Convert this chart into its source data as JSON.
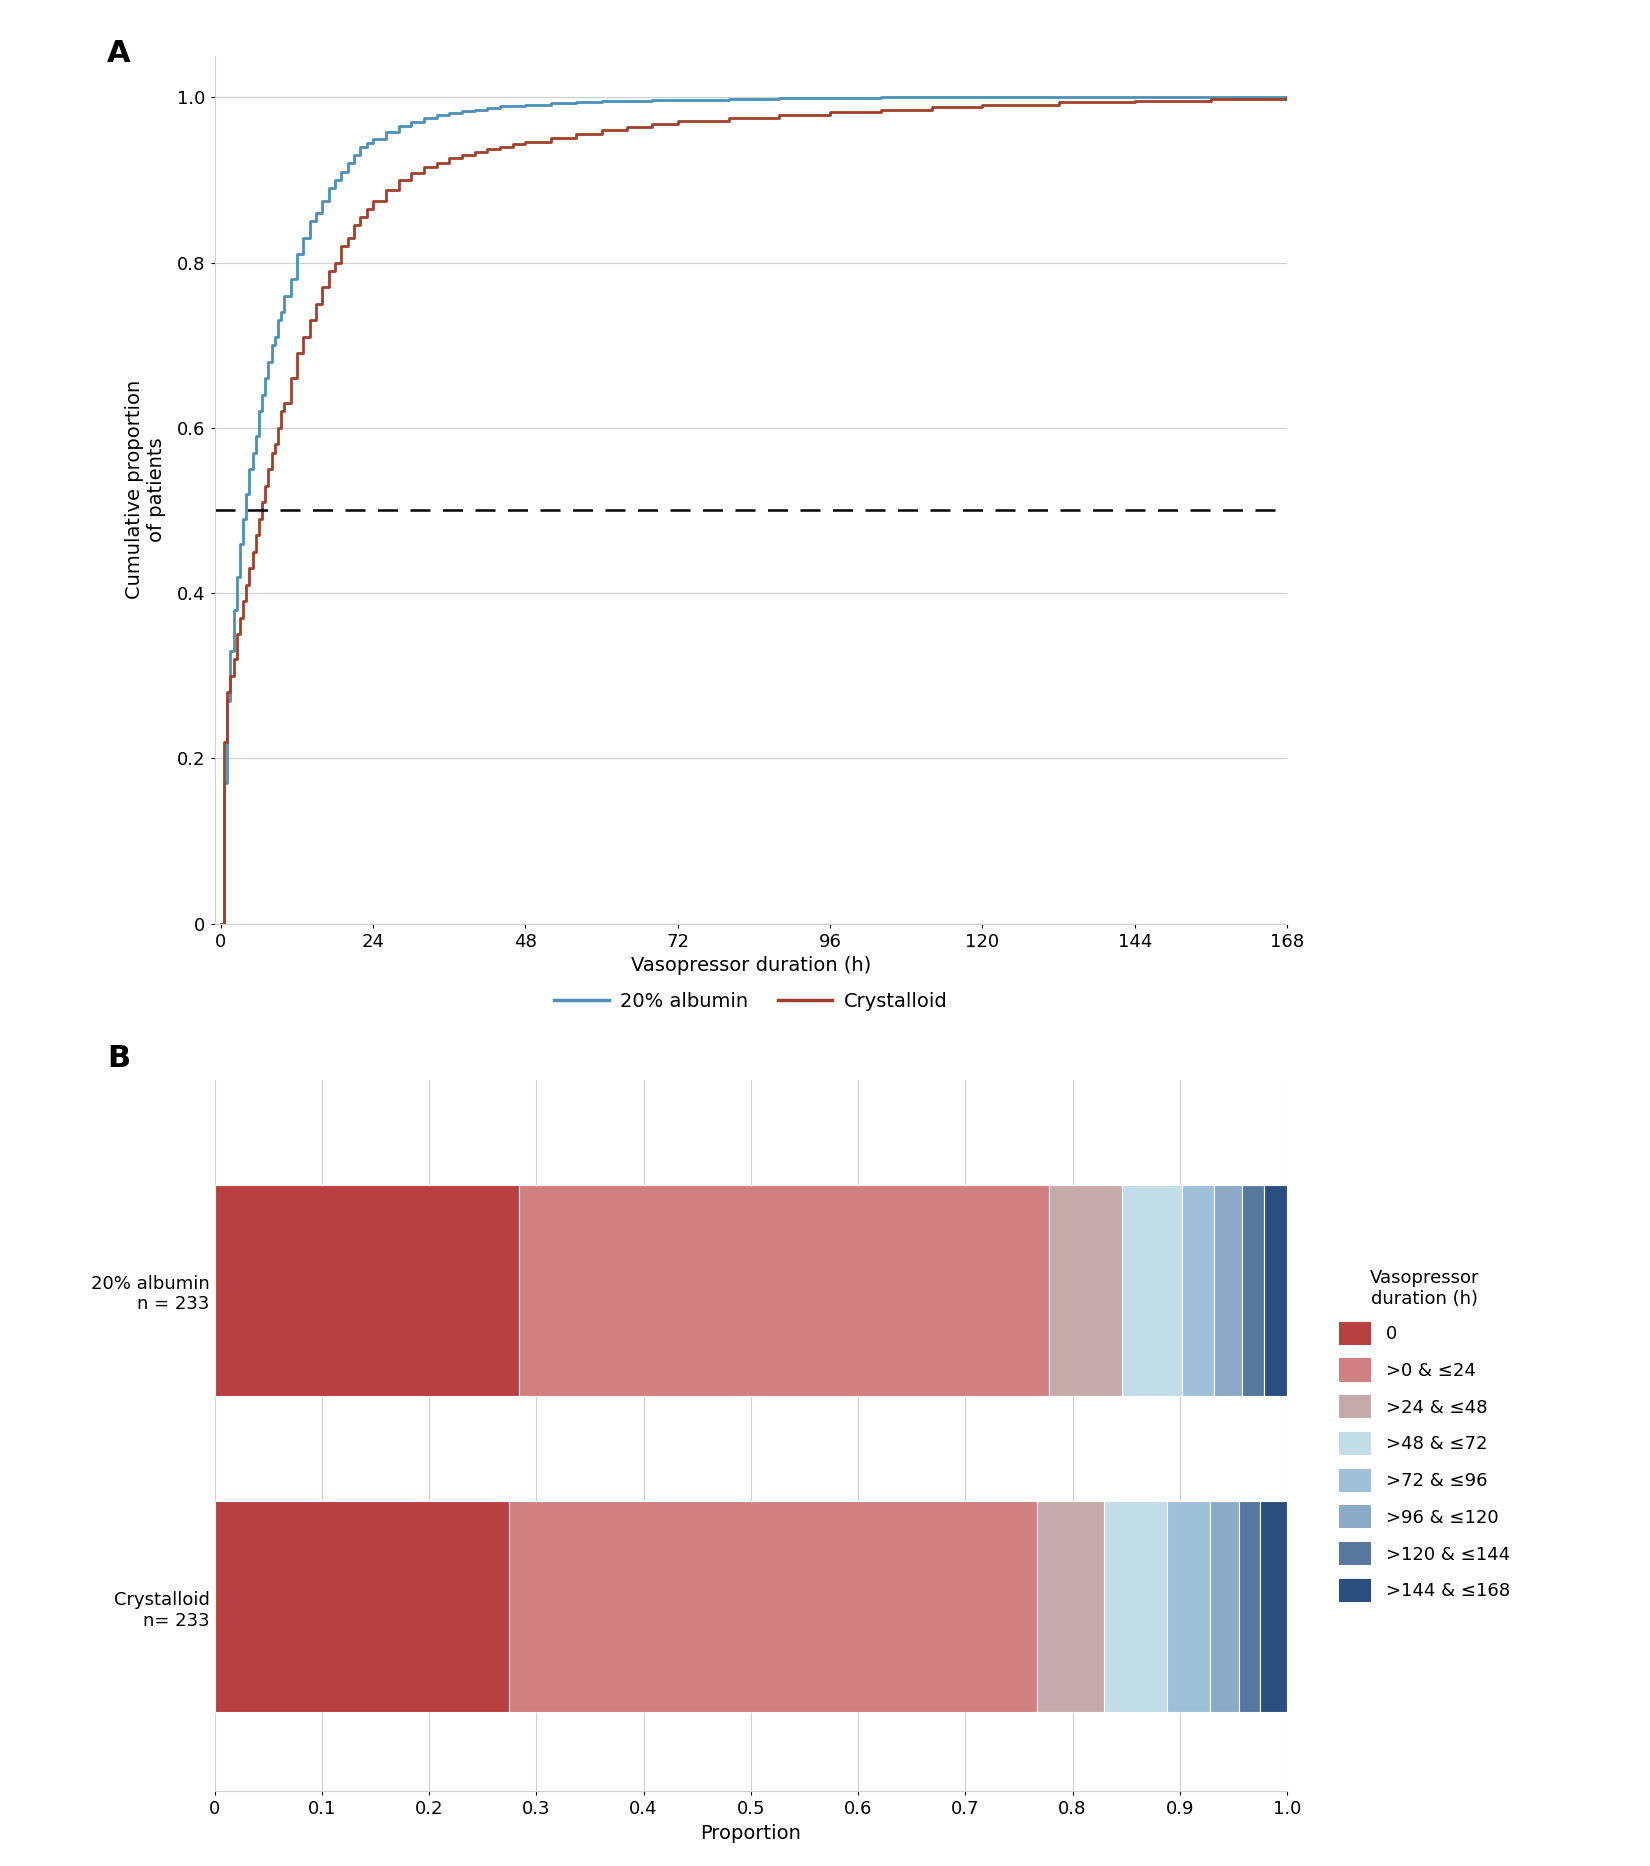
{
  "panel_a": {
    "xlabel": "Vasopressor duration (h)",
    "ylabel": "Cumulative proportion\nof patients",
    "xlim": [
      -1,
      168
    ],
    "ylim": [
      0,
      1.05
    ],
    "xticks": [
      0,
      24,
      48,
      72,
      96,
      120,
      144,
      168
    ],
    "yticks": [
      0,
      0.2,
      0.4,
      0.6,
      0.8,
      1.0
    ],
    "dashed_line_y": 0.5,
    "albumin_color": "#4a90b8",
    "crystalloid_color": "#a0402a",
    "albumin_x": [
      0,
      0.5,
      1,
      1.5,
      2,
      2.5,
      3,
      3.5,
      4,
      4.5,
      5,
      5.5,
      6,
      6.5,
      7,
      7.5,
      8,
      8.5,
      9,
      9.5,
      10,
      11,
      12,
      13,
      14,
      15,
      16,
      17,
      18,
      19,
      20,
      21,
      22,
      23,
      24,
      26,
      28,
      30,
      32,
      34,
      36,
      38,
      40,
      42,
      44,
      46,
      48,
      52,
      56,
      60,
      64,
      68,
      72,
      80,
      88,
      96,
      104,
      112,
      120,
      132,
      144,
      156,
      168
    ],
    "albumin_y": [
      0,
      0.17,
      0.27,
      0.33,
      0.38,
      0.42,
      0.46,
      0.49,
      0.52,
      0.55,
      0.57,
      0.59,
      0.62,
      0.64,
      0.66,
      0.68,
      0.7,
      0.71,
      0.73,
      0.74,
      0.76,
      0.78,
      0.81,
      0.83,
      0.85,
      0.86,
      0.875,
      0.89,
      0.9,
      0.91,
      0.92,
      0.93,
      0.94,
      0.945,
      0.95,
      0.958,
      0.965,
      0.97,
      0.975,
      0.978,
      0.981,
      0.983,
      0.985,
      0.987,
      0.989,
      0.99,
      0.991,
      0.993,
      0.994,
      0.995,
      0.996,
      0.997,
      0.997,
      0.998,
      0.999,
      0.999,
      1.0,
      1.0,
      1.0,
      1.0,
      1.0,
      1.0,
      1.0
    ],
    "crystalloid_x": [
      0,
      0.5,
      1,
      1.5,
      2,
      2.5,
      3,
      3.5,
      4,
      4.5,
      5,
      5.5,
      6,
      6.5,
      7,
      7.5,
      8,
      8.5,
      9,
      9.5,
      10,
      11,
      12,
      13,
      14,
      15,
      16,
      17,
      18,
      19,
      20,
      21,
      22,
      23,
      24,
      26,
      28,
      30,
      32,
      34,
      36,
      38,
      40,
      42,
      44,
      46,
      48,
      52,
      56,
      60,
      64,
      68,
      72,
      80,
      88,
      96,
      104,
      112,
      120,
      132,
      144,
      156,
      168
    ],
    "crystalloid_y": [
      0,
      0.22,
      0.28,
      0.3,
      0.32,
      0.35,
      0.37,
      0.39,
      0.41,
      0.43,
      0.45,
      0.47,
      0.49,
      0.51,
      0.53,
      0.55,
      0.57,
      0.58,
      0.6,
      0.62,
      0.63,
      0.66,
      0.69,
      0.71,
      0.73,
      0.75,
      0.77,
      0.79,
      0.8,
      0.82,
      0.83,
      0.845,
      0.855,
      0.865,
      0.875,
      0.888,
      0.9,
      0.908,
      0.916,
      0.921,
      0.926,
      0.93,
      0.934,
      0.937,
      0.94,
      0.943,
      0.946,
      0.951,
      0.956,
      0.96,
      0.964,
      0.968,
      0.971,
      0.975,
      0.979,
      0.982,
      0.985,
      0.988,
      0.991,
      0.994,
      0.996,
      0.998,
      1.0
    ],
    "legend_albumin": "20% albumin",
    "legend_crystalloid": "Crystalloid"
  },
  "panel_b": {
    "xlabel": "Proportion",
    "xlim": [
      0,
      1.0
    ],
    "xtick_labels": [
      "0",
      "0.1",
      "0.2",
      "0.3",
      "0.4",
      "0.5",
      "0.6",
      "0.7",
      "0.8",
      "0.9",
      "1.0"
    ],
    "xticks": [
      0,
      0.1,
      0.2,
      0.3,
      0.4,
      0.5,
      0.6,
      0.7,
      0.8,
      0.9,
      1.0
    ],
    "bar_labels": [
      "20% albumin\nn = 233",
      "Crystalloid\nn= 233"
    ],
    "albumin_proportions": [
      0.284,
      0.494,
      0.068,
      0.056,
      0.03,
      0.026,
      0.021,
      0.021
    ],
    "crystalloid_proportions": [
      0.275,
      0.492,
      0.062,
      0.059,
      0.04,
      0.027,
      0.02,
      0.025
    ],
    "colors": [
      "#b84040",
      "#d08080",
      "#c4aaaa",
      "#c2dce8",
      "#9ec0d8",
      "#8aaac8",
      "#5878a0",
      "#2a4e80"
    ],
    "legend_labels": [
      "0",
      ">0 & ≤24",
      ">24 & ≤48",
      ">48 & ≤72",
      ">72 & ≤96",
      ">96 & ≤120",
      ">120 & ≤144",
      ">144 & ≤168"
    ],
    "legend_title": "Vasopressor\nduration (h)"
  }
}
